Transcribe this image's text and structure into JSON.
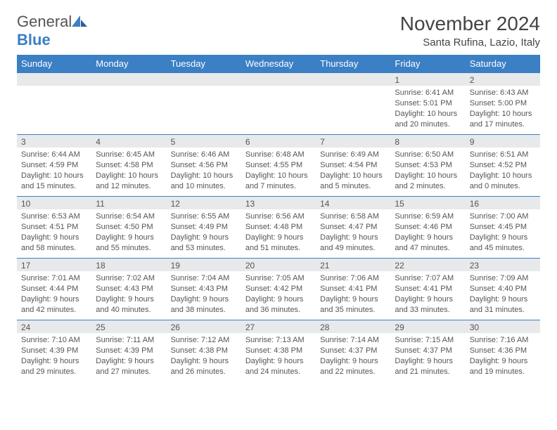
{
  "logo": {
    "text1": "General",
    "text2": "Blue"
  },
  "title": "November 2024",
  "location": "Santa Rufina, Lazio, Italy",
  "dayHeaders": [
    "Sunday",
    "Monday",
    "Tuesday",
    "Wednesday",
    "Thursday",
    "Friday",
    "Saturday"
  ],
  "colors": {
    "headerBg": "#3b7fc4",
    "headerText": "#ffffff",
    "dayNumBg": "#e8e9ea",
    "text": "#555555",
    "rowBorder": "#3b7fc4"
  },
  "weeks": [
    [
      null,
      null,
      null,
      null,
      null,
      {
        "n": "1",
        "sunrise": "Sunrise: 6:41 AM",
        "sunset": "Sunset: 5:01 PM",
        "day1": "Daylight: 10 hours",
        "day2": "and 20 minutes."
      },
      {
        "n": "2",
        "sunrise": "Sunrise: 6:43 AM",
        "sunset": "Sunset: 5:00 PM",
        "day1": "Daylight: 10 hours",
        "day2": "and 17 minutes."
      }
    ],
    [
      {
        "n": "3",
        "sunrise": "Sunrise: 6:44 AM",
        "sunset": "Sunset: 4:59 PM",
        "day1": "Daylight: 10 hours",
        "day2": "and 15 minutes."
      },
      {
        "n": "4",
        "sunrise": "Sunrise: 6:45 AM",
        "sunset": "Sunset: 4:58 PM",
        "day1": "Daylight: 10 hours",
        "day2": "and 12 minutes."
      },
      {
        "n": "5",
        "sunrise": "Sunrise: 6:46 AM",
        "sunset": "Sunset: 4:56 PM",
        "day1": "Daylight: 10 hours",
        "day2": "and 10 minutes."
      },
      {
        "n": "6",
        "sunrise": "Sunrise: 6:48 AM",
        "sunset": "Sunset: 4:55 PM",
        "day1": "Daylight: 10 hours",
        "day2": "and 7 minutes."
      },
      {
        "n": "7",
        "sunrise": "Sunrise: 6:49 AM",
        "sunset": "Sunset: 4:54 PM",
        "day1": "Daylight: 10 hours",
        "day2": "and 5 minutes."
      },
      {
        "n": "8",
        "sunrise": "Sunrise: 6:50 AM",
        "sunset": "Sunset: 4:53 PM",
        "day1": "Daylight: 10 hours",
        "day2": "and 2 minutes."
      },
      {
        "n": "9",
        "sunrise": "Sunrise: 6:51 AM",
        "sunset": "Sunset: 4:52 PM",
        "day1": "Daylight: 10 hours",
        "day2": "and 0 minutes."
      }
    ],
    [
      {
        "n": "10",
        "sunrise": "Sunrise: 6:53 AM",
        "sunset": "Sunset: 4:51 PM",
        "day1": "Daylight: 9 hours",
        "day2": "and 58 minutes."
      },
      {
        "n": "11",
        "sunrise": "Sunrise: 6:54 AM",
        "sunset": "Sunset: 4:50 PM",
        "day1": "Daylight: 9 hours",
        "day2": "and 55 minutes."
      },
      {
        "n": "12",
        "sunrise": "Sunrise: 6:55 AM",
        "sunset": "Sunset: 4:49 PM",
        "day1": "Daylight: 9 hours",
        "day2": "and 53 minutes."
      },
      {
        "n": "13",
        "sunrise": "Sunrise: 6:56 AM",
        "sunset": "Sunset: 4:48 PM",
        "day1": "Daylight: 9 hours",
        "day2": "and 51 minutes."
      },
      {
        "n": "14",
        "sunrise": "Sunrise: 6:58 AM",
        "sunset": "Sunset: 4:47 PM",
        "day1": "Daylight: 9 hours",
        "day2": "and 49 minutes."
      },
      {
        "n": "15",
        "sunrise": "Sunrise: 6:59 AM",
        "sunset": "Sunset: 4:46 PM",
        "day1": "Daylight: 9 hours",
        "day2": "and 47 minutes."
      },
      {
        "n": "16",
        "sunrise": "Sunrise: 7:00 AM",
        "sunset": "Sunset: 4:45 PM",
        "day1": "Daylight: 9 hours",
        "day2": "and 45 minutes."
      }
    ],
    [
      {
        "n": "17",
        "sunrise": "Sunrise: 7:01 AM",
        "sunset": "Sunset: 4:44 PM",
        "day1": "Daylight: 9 hours",
        "day2": "and 42 minutes."
      },
      {
        "n": "18",
        "sunrise": "Sunrise: 7:02 AM",
        "sunset": "Sunset: 4:43 PM",
        "day1": "Daylight: 9 hours",
        "day2": "and 40 minutes."
      },
      {
        "n": "19",
        "sunrise": "Sunrise: 7:04 AM",
        "sunset": "Sunset: 4:43 PM",
        "day1": "Daylight: 9 hours",
        "day2": "and 38 minutes."
      },
      {
        "n": "20",
        "sunrise": "Sunrise: 7:05 AM",
        "sunset": "Sunset: 4:42 PM",
        "day1": "Daylight: 9 hours",
        "day2": "and 36 minutes."
      },
      {
        "n": "21",
        "sunrise": "Sunrise: 7:06 AM",
        "sunset": "Sunset: 4:41 PM",
        "day1": "Daylight: 9 hours",
        "day2": "and 35 minutes."
      },
      {
        "n": "22",
        "sunrise": "Sunrise: 7:07 AM",
        "sunset": "Sunset: 4:41 PM",
        "day1": "Daylight: 9 hours",
        "day2": "and 33 minutes."
      },
      {
        "n": "23",
        "sunrise": "Sunrise: 7:09 AM",
        "sunset": "Sunset: 4:40 PM",
        "day1": "Daylight: 9 hours",
        "day2": "and 31 minutes."
      }
    ],
    [
      {
        "n": "24",
        "sunrise": "Sunrise: 7:10 AM",
        "sunset": "Sunset: 4:39 PM",
        "day1": "Daylight: 9 hours",
        "day2": "and 29 minutes."
      },
      {
        "n": "25",
        "sunrise": "Sunrise: 7:11 AM",
        "sunset": "Sunset: 4:39 PM",
        "day1": "Daylight: 9 hours",
        "day2": "and 27 minutes."
      },
      {
        "n": "26",
        "sunrise": "Sunrise: 7:12 AM",
        "sunset": "Sunset: 4:38 PM",
        "day1": "Daylight: 9 hours",
        "day2": "and 26 minutes."
      },
      {
        "n": "27",
        "sunrise": "Sunrise: 7:13 AM",
        "sunset": "Sunset: 4:38 PM",
        "day1": "Daylight: 9 hours",
        "day2": "and 24 minutes."
      },
      {
        "n": "28",
        "sunrise": "Sunrise: 7:14 AM",
        "sunset": "Sunset: 4:37 PM",
        "day1": "Daylight: 9 hours",
        "day2": "and 22 minutes."
      },
      {
        "n": "29",
        "sunrise": "Sunrise: 7:15 AM",
        "sunset": "Sunset: 4:37 PM",
        "day1": "Daylight: 9 hours",
        "day2": "and 21 minutes."
      },
      {
        "n": "30",
        "sunrise": "Sunrise: 7:16 AM",
        "sunset": "Sunset: 4:36 PM",
        "day1": "Daylight: 9 hours",
        "day2": "and 19 minutes."
      }
    ]
  ]
}
